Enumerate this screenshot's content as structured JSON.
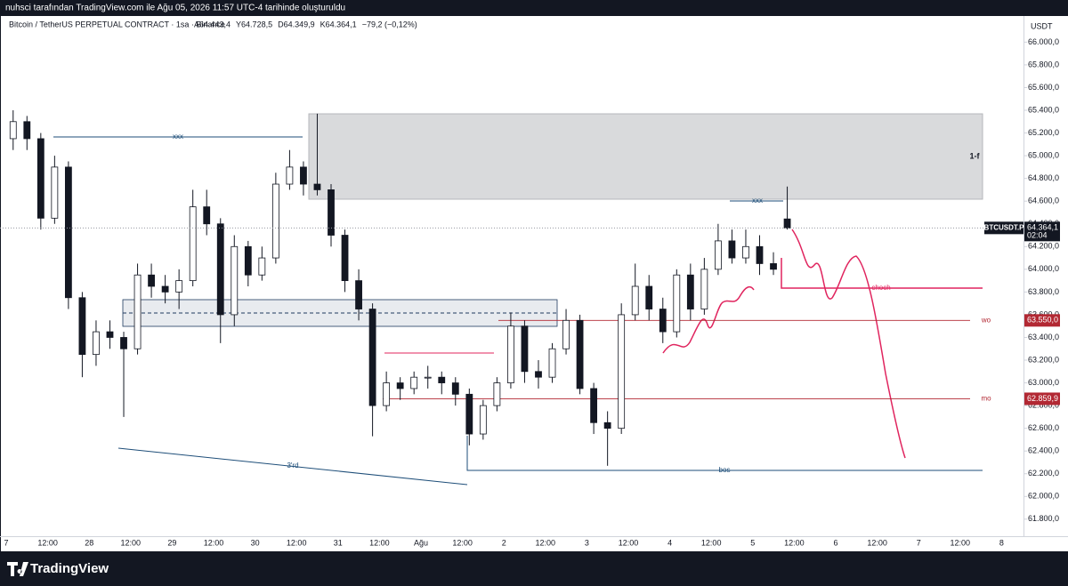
{
  "header": {
    "caption": "nuhsci tarafından TradingView.com ile Ağu 05, 2026 11:57 UTC-4 tarihinde oluşturuldu",
    "symbol": "Bitcoin / TetherUS PERPETUAL CONTRACT · 1sa · Binance",
    "ohlc_labels": [
      "A64.443,4",
      "Y64.728,5",
      "D64.349,9",
      "K64.364,1",
      "−79,2 (−0,12%)"
    ]
  },
  "footer": {
    "brand": "TradingView"
  },
  "chart_data": {
    "type": "candlestick",
    "currency": "USDT",
    "open": [
      65150,
      65300,
      65150,
      64450,
      64900,
      63750,
      63250,
      63450,
      63400,
      63300,
      63950,
      63850,
      63800,
      63900,
      64550,
      64400,
      63600,
      64200,
      63950,
      64100,
      64750,
      64900,
      64750,
      64700,
      64300,
      63900,
      63650,
      62800,
      63000,
      62950,
      63050,
      63050,
      63000,
      62900,
      62550,
      62800,
      63000,
      63500,
      63100,
      63050,
      63300,
      63550,
      62950,
      62650,
      62600,
      63600,
      63850,
      63650,
      63450,
      63950,
      63650,
      64000,
      64250,
      64100,
      64200,
      64050,
      64443.4
    ],
    "high": [
      65400,
      65350,
      65200,
      65000,
      64950,
      63800,
      63550,
      63550,
      63450,
      64050,
      64050,
      63950,
      64000,
      64700,
      64700,
      64450,
      64300,
      64250,
      64200,
      64850,
      65050,
      64950,
      65370,
      64750,
      64350,
      64000,
      63700,
      63100,
      63050,
      63100,
      63150,
      63100,
      63050,
      62950,
      62850,
      63050,
      63620,
      63550,
      63200,
      63350,
      63650,
      63600,
      63000,
      62750,
      63700,
      64050,
      63950,
      63750,
      64000,
      64050,
      64100,
      64400,
      64350,
      64350,
      64300,
      64150,
      64728.5
    ],
    "low": [
      65050,
      65050,
      64350,
      64400,
      63650,
      63050,
      63150,
      63300,
      62700,
      63250,
      63750,
      63700,
      63650,
      63850,
      64300,
      63350,
      63500,
      63850,
      63900,
      64050,
      64700,
      64650,
      64650,
      64200,
      63800,
      63550,
      62530,
      62750,
      62850,
      62900,
      62950,
      62900,
      62800,
      62450,
      62500,
      62750,
      62950,
      63000,
      62950,
      63000,
      63250,
      62900,
      62550,
      62270,
      62550,
      63550,
      63550,
      63350,
      63400,
      63550,
      63600,
      63950,
      64050,
      64050,
      63950,
      63950,
      64349.9
    ],
    "close": [
      65300,
      65150,
      64450,
      64900,
      63750,
      63250,
      63450,
      63400,
      63300,
      63950,
      63850,
      63800,
      63900,
      64550,
      64400,
      63600,
      64200,
      63950,
      64100,
      64750,
      64900,
      64750,
      64700,
      64300,
      63900,
      63650,
      62800,
      63000,
      62950,
      63050,
      63050,
      63000,
      62900,
      62550,
      62800,
      63000,
      63500,
      63100,
      63050,
      63300,
      63550,
      62950,
      62650,
      62600,
      63600,
      63850,
      63650,
      63450,
      63950,
      63650,
      64000,
      64250,
      64100,
      64200,
      64050,
      64000,
      64364.1
    ],
    "time_labels": [
      "7",
      "12:00",
      "28",
      "12:00",
      "29",
      "12:00",
      "30",
      "12:00",
      "31",
      "12:00",
      "Ağu",
      "12:00",
      "2",
      "12:00",
      "3",
      "12:00",
      "4",
      "12:00",
      "5",
      "12:00",
      "6",
      "12:00",
      "7",
      "12:00",
      "8"
    ],
    "ylim": [
      61650,
      66230
    ],
    "yticks": [
      {
        "value": 61800,
        "label": "61.800,0"
      },
      {
        "value": 62000,
        "label": "62.000,0"
      },
      {
        "value": 62200,
        "label": "62.200,0"
      },
      {
        "value": 62400,
        "label": "62.400,0"
      },
      {
        "value": 62600,
        "label": "62.600,0"
      },
      {
        "value": 62800,
        "label": "62.800,0"
      },
      {
        "value": 63000,
        "label": "63.000,0"
      },
      {
        "value": 63200,
        "label": "63.200,0"
      },
      {
        "value": 63400,
        "label": "63.400,0"
      },
      {
        "value": 63600,
        "label": "63.600,0"
      },
      {
        "value": 63800,
        "label": "63.800,0"
      },
      {
        "value": 64000,
        "label": "64.000,0"
      },
      {
        "value": 64200,
        "label": "64.200,0"
      },
      {
        "value": 64400,
        "label": "64.400,0"
      },
      {
        "value": 64600,
        "label": "64.600,0"
      },
      {
        "value": 64800,
        "label": "64.800,0"
      },
      {
        "value": 65000,
        "label": "65.000,0"
      },
      {
        "value": 65200,
        "label": "65.200,0"
      },
      {
        "value": 65400,
        "label": "65.400,0"
      },
      {
        "value": 65600,
        "label": "65.600,0"
      },
      {
        "value": 65800,
        "label": "65.800,0"
      },
      {
        "value": 66000,
        "label": "66.000,0"
      }
    ],
    "levels": [
      {
        "name": "wo",
        "value": 63550,
        "label": "63.550,0",
        "color": "#b22833"
      },
      {
        "name": "mo",
        "value": 62859.9,
        "label": "62.859,9",
        "color": "#b22833"
      }
    ],
    "last_price": {
      "value": 64364.1,
      "label": "64.364,1",
      "symbol": "BTCUSDT.P",
      "countdown": "02:04"
    },
    "drawing_labels": [
      "xxx",
      "xxx",
      "3'rd",
      "1-f",
      "choch",
      "bos"
    ],
    "up_color": "#ffffff",
    "down_color": "#131722",
    "border_color": "#131722"
  }
}
